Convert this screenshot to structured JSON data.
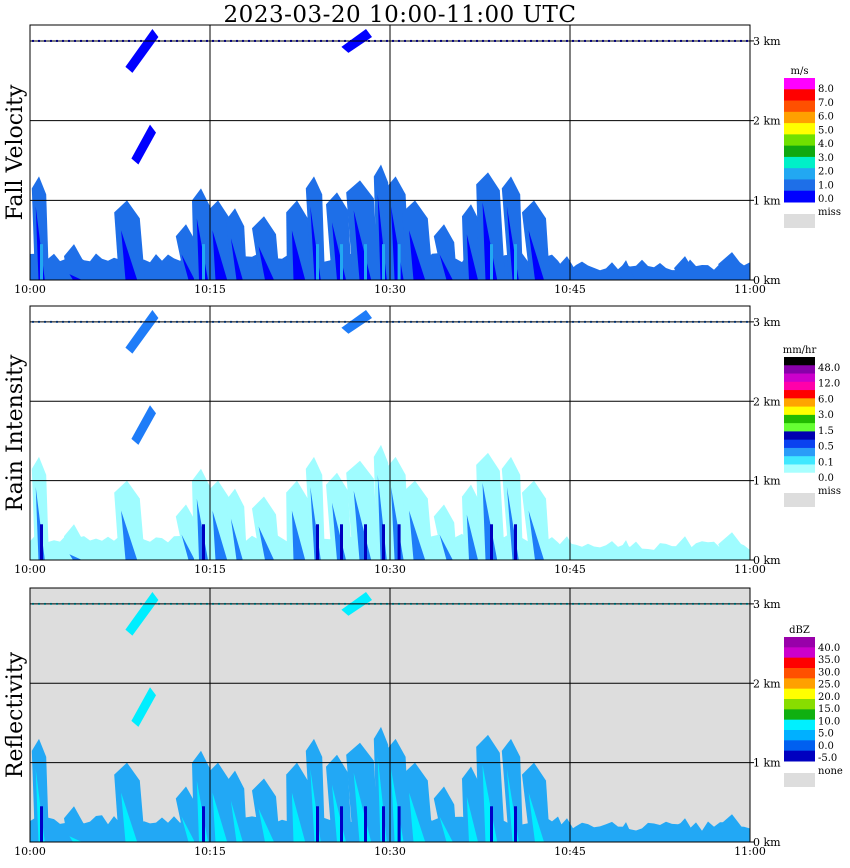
{
  "chart_data": {
    "type": "heatmap",
    "title": "2023-03-20   10:00-11:00 UTC",
    "x_ticks": [
      "10:00",
      "10:15",
      "10:30",
      "10:45",
      "11:00"
    ],
    "xlim_minutes": [
      0,
      60
    ],
    "y_ticks": [
      "0 km",
      "1 km",
      "2 km",
      "3 km"
    ],
    "ylim_km": [
      0,
      3.2
    ],
    "grid": true,
    "legend_position": "right",
    "panels": [
      {
        "ylabel": "Fall Velocity",
        "unit": "m/s",
        "background": "#ffffff",
        "miss_label": "miss",
        "miss_color": "#dddddd",
        "colors": [
          "#0000ff",
          "#1e6fe8",
          "#22a8f2",
          "#00f0c8",
          "#10a810",
          "#70e000",
          "#ffff00",
          "#ffa000",
          "#ff5000",
          "#ff0000",
          "#ff00ff"
        ],
        "labels": [
          "8.0",
          "7.0",
          "6.0",
          "5.0",
          "4.0",
          "3.0",
          "2.0",
          "1.0",
          "0.0"
        ],
        "base_color": "#1e6fe8",
        "accent_color": "#0000ff",
        "core_color": "#22a8f2"
      },
      {
        "ylabel": "Rain Intensity",
        "unit": "mm/hr",
        "background": "#ffffff",
        "miss_label": "miss",
        "miss_color": "#dddddd",
        "colors": [
          "#ffffff",
          "#a8ffff",
          "#40e8ff",
          "#2a9cf8",
          "#0a42f0",
          "#0000b0",
          "#66ff33",
          "#22bb00",
          "#ffff00",
          "#ffa500",
          "#ff0000",
          "#ff00aa",
          "#cc00cc",
          "#8800aa",
          "#000000"
        ],
        "labels": [
          "48.0",
          "12.0",
          "6.0",
          "3.0",
          "1.5",
          "0.5",
          "0.1",
          "0.0"
        ],
        "base_color": "#9ffcff",
        "accent_color": "#1e7cf8",
        "core_color": "#0000c0"
      },
      {
        "ylabel": "Reflectivity",
        "unit": "dBZ",
        "background": "#dddddd",
        "miss_label": "none",
        "miss_color": "#dddddd",
        "colors": [
          "#0000c0",
          "#0060f0",
          "#00b0ff",
          "#00f0ff",
          "#10b010",
          "#88dd00",
          "#ffff00",
          "#ffa000",
          "#ff5000",
          "#ff0000",
          "#cc00cc",
          "#9900aa"
        ],
        "labels": [
          "40.0",
          "35.0",
          "30.0",
          "25.0",
          "20.0",
          "15.0",
          "10.0",
          "5.0",
          "0.0",
          "-5.0"
        ],
        "base_color": "#22a8f5",
        "accent_color": "#00eeff",
        "core_color": "#0000c8"
      }
    ],
    "features": [
      {
        "minute": 1,
        "top_km": 1.3
      },
      {
        "minute": 4,
        "top_km": 0.45
      },
      {
        "minute": 8.5,
        "top_km": 1.0
      },
      {
        "minute": 13.5,
        "top_km": 0.7
      },
      {
        "minute": 14.5,
        "top_km": 1.15
      },
      {
        "minute": 16,
        "top_km": 1.0
      },
      {
        "minute": 17.5,
        "top_km": 0.9
      },
      {
        "minute": 20,
        "top_km": 0.8
      },
      {
        "minute": 22.5,
        "top_km": 1.0
      },
      {
        "minute": 24,
        "top_km": 1.3
      },
      {
        "minute": 26,
        "top_km": 1.1
      },
      {
        "minute": 28,
        "top_km": 1.25
      },
      {
        "minute": 29.5,
        "top_km": 1.45
      },
      {
        "minute": 30.8,
        "top_km": 1.3
      },
      {
        "minute": 32.5,
        "top_km": 1.0
      },
      {
        "minute": 35,
        "top_km": 0.7
      },
      {
        "minute": 37,
        "top_km": 0.95
      },
      {
        "minute": 38.5,
        "top_km": 1.35
      },
      {
        "minute": 40.5,
        "top_km": 1.3
      },
      {
        "minute": 42.5,
        "top_km": 1.0
      },
      {
        "minute": 45,
        "top_km": 0.3
      },
      {
        "minute": 50,
        "top_km": 0.25
      },
      {
        "minute": 55,
        "top_km": 0.3
      },
      {
        "minute": 59,
        "top_km": 0.35
      }
    ],
    "aloft_streaks": [
      {
        "minute_start": 8.2,
        "minute_end": 10.2,
        "top_km": 3.15,
        "bottom_km": 2.6
      },
      {
        "minute_start": 8.7,
        "minute_end": 10.0,
        "top_km": 1.95,
        "bottom_km": 1.45
      },
      {
        "minute_start": 26.2,
        "minute_end": 28.0,
        "top_km": 3.15,
        "bottom_km": 2.85
      }
    ]
  }
}
